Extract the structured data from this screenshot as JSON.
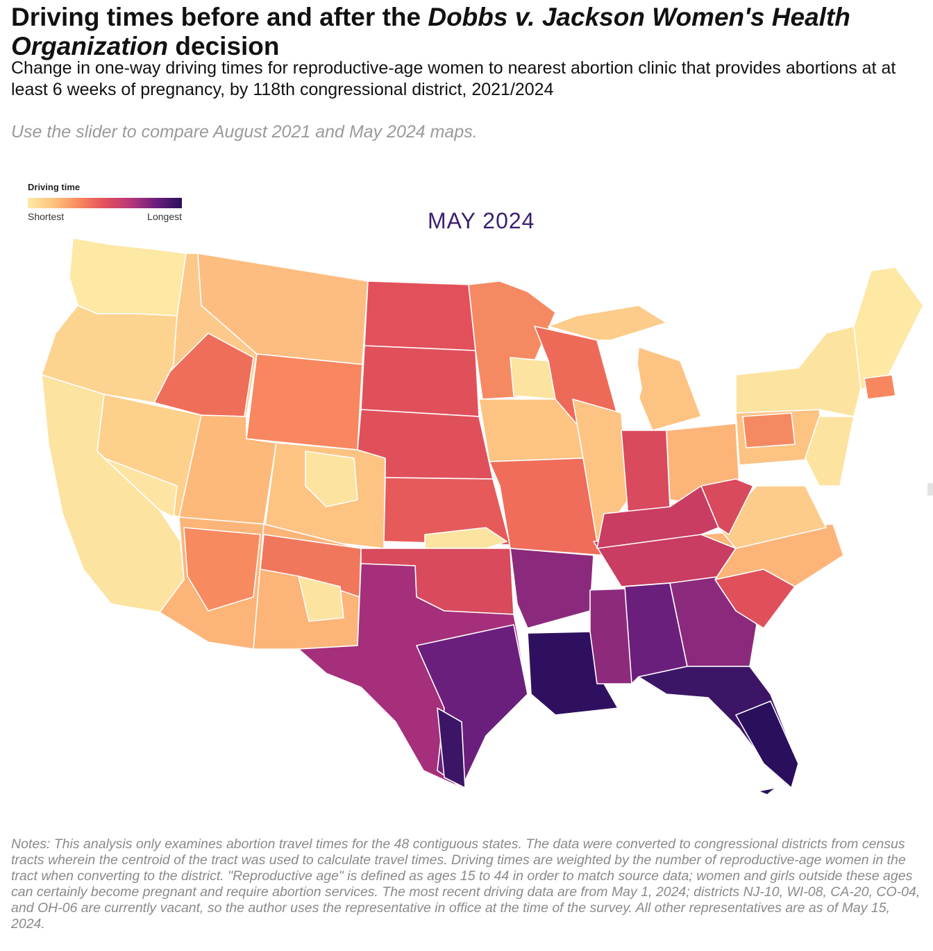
{
  "header": {
    "title_part1": "Driving times before and after the ",
    "title_italic": "Dobbs v. Jackson Women's Health Organization",
    "title_part2": " decision",
    "subtitle": "Change in one-way driving times for reproductive-age women to nearest abortion clinic that provides abortions at at least 6 weeks of pregnancy, by 118th congressional district, 2021/2024",
    "instruction": "Use the slider to compare August 2021 and May 2024 maps."
  },
  "legend": {
    "title": "Driving time",
    "min_label": "Shortest",
    "max_label": "Longest",
    "colors": [
      "#fde9a6",
      "#fdc47c",
      "#f8875f",
      "#e2505b",
      "#b73779",
      "#6b1f7c",
      "#2a0f5c"
    ]
  },
  "map": {
    "period_label": "MAY 2024"
  },
  "notes": {
    "text": "Notes: This analysis only examines abortion travel times for the 48 contiguous states. The data were converted to congressional districts from census tracts wherein the centroid of the tract was used to calculate travel times. Driving times are weighted by the number of reproductive-age women in the tract when converting to the district. \"Reproductive age\" is defined as ages 15 to 44 in order to match source data; women and girls outside these ages can certainly become pregnant and require abortion services. The most recent driving data are from May 1, 2024; districts NJ-10, WI-08, CA-20, CO-04, and OH-06 are currently vacant, so the author uses the representative in office at the time of the survey. All other representatives are as of May 15, 2024."
  }
}
